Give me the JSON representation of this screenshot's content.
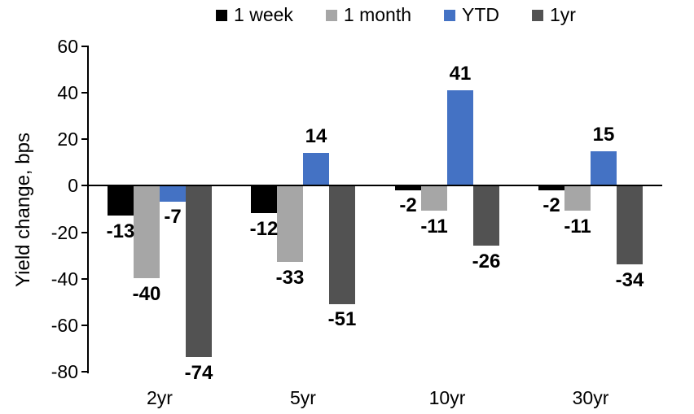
{
  "chart_data": {
    "type": "bar",
    "title": "",
    "ylabel": "Yield change, bps",
    "xlabel": "",
    "categories": [
      "2yr",
      "5yr",
      "10yr",
      "30yr"
    ],
    "series": [
      {
        "name": "1 week",
        "color": "#000000",
        "values": [
          -13,
          -12,
          -2,
          -2
        ]
      },
      {
        "name": "1 month",
        "color": "#A6A6A6",
        "values": [
          -40,
          -33,
          -11,
          -11
        ]
      },
      {
        "name": "YTD",
        "color": "#4472C4",
        "values": [
          -7,
          14,
          41,
          15
        ]
      },
      {
        "name": "1yr",
        "color": "#525252",
        "values": [
          -74,
          -51,
          -26,
          -34
        ]
      }
    ],
    "yticks": [
      60,
      40,
      20,
      0,
      -20,
      -40,
      -60,
      -80
    ],
    "ylim": [
      -80,
      60
    ],
    "grid": false,
    "legend_position": "top",
    "data_labels": true,
    "data_label_style": "bold"
  }
}
